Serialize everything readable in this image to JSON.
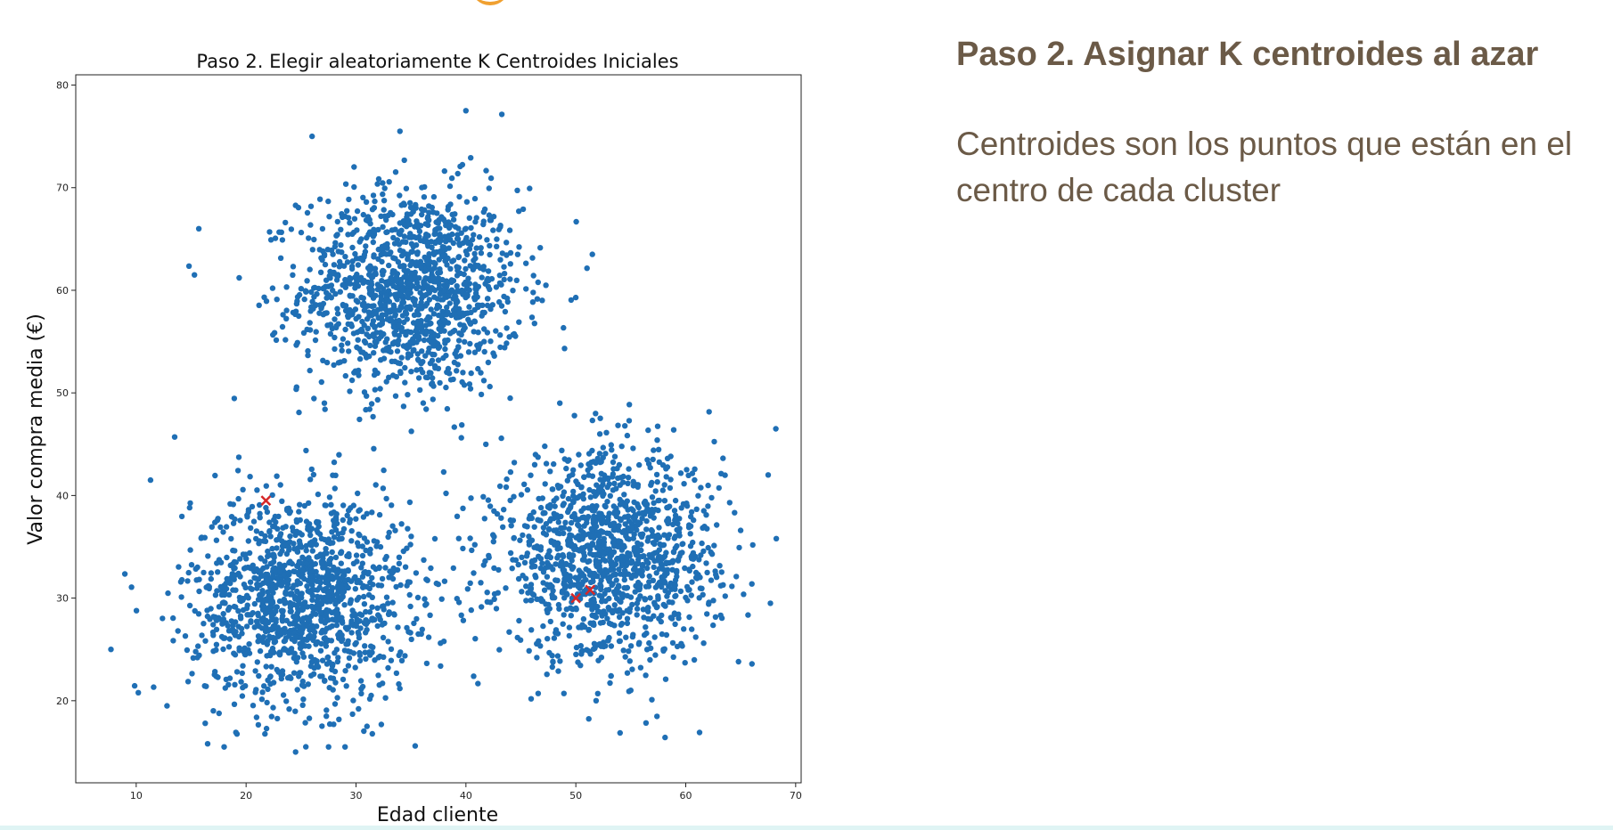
{
  "slide": {
    "heading": "Paso 2. Asignar K centroides al azar",
    "body": "Centroides son los puntos que están en el centro de cada cluster"
  },
  "colors": {
    "points": "#1f6fb5",
    "centroids": "#d62728",
    "text": "#6b5a47",
    "accent_orange": "#f0a030",
    "bottom_strip": "#dff4f4"
  },
  "chart_data": {
    "type": "scatter",
    "title": "Paso 2. Elegir aleatoriamente K Centroides Iniciales",
    "xlabel": "Edad cliente",
    "ylabel": "Valor compra media (€)",
    "xlim": [
      4.5,
      70.5
    ],
    "ylim": [
      12,
      81
    ],
    "xticks": [
      10,
      20,
      30,
      40,
      50,
      60,
      70
    ],
    "yticks": [
      20,
      30,
      40,
      50,
      60,
      70,
      80
    ],
    "grid": false,
    "clusters": [
      {
        "center": [
          35,
          60
        ],
        "std": [
          5,
          5
        ],
        "count": 1300
      },
      {
        "center": [
          25,
          30
        ],
        "std": [
          5,
          5
        ],
        "count": 1300
      },
      {
        "center": [
          53,
          34
        ],
        "std": [
          5,
          5
        ],
        "count": 1300
      }
    ],
    "outliers": [
      [
        40,
        77.5
      ],
      [
        34,
        75.5
      ],
      [
        26,
        75
      ],
      [
        15.7,
        66
      ],
      [
        15.3,
        61.5
      ],
      [
        51.5,
        63.5
      ],
      [
        68.2,
        46.5
      ],
      [
        13.5,
        45.7
      ],
      [
        11.3,
        41.5
      ],
      [
        7.7,
        25
      ],
      [
        12.8,
        19.5
      ],
      [
        16.5,
        15.8
      ],
      [
        18,
        15.5
      ],
      [
        24.5,
        15
      ],
      [
        27.5,
        15.5
      ],
      [
        29,
        15.5
      ],
      [
        31,
        17.5
      ],
      [
        64.8,
        23.8
      ],
      [
        67.5,
        42
      ],
      [
        67.7,
        29.5
      ]
    ],
    "centroids": [
      {
        "x": 21.8,
        "y": 39.5
      },
      {
        "x": 50,
        "y": 30
      },
      {
        "x": 51.3,
        "y": 30.8
      }
    ]
  }
}
